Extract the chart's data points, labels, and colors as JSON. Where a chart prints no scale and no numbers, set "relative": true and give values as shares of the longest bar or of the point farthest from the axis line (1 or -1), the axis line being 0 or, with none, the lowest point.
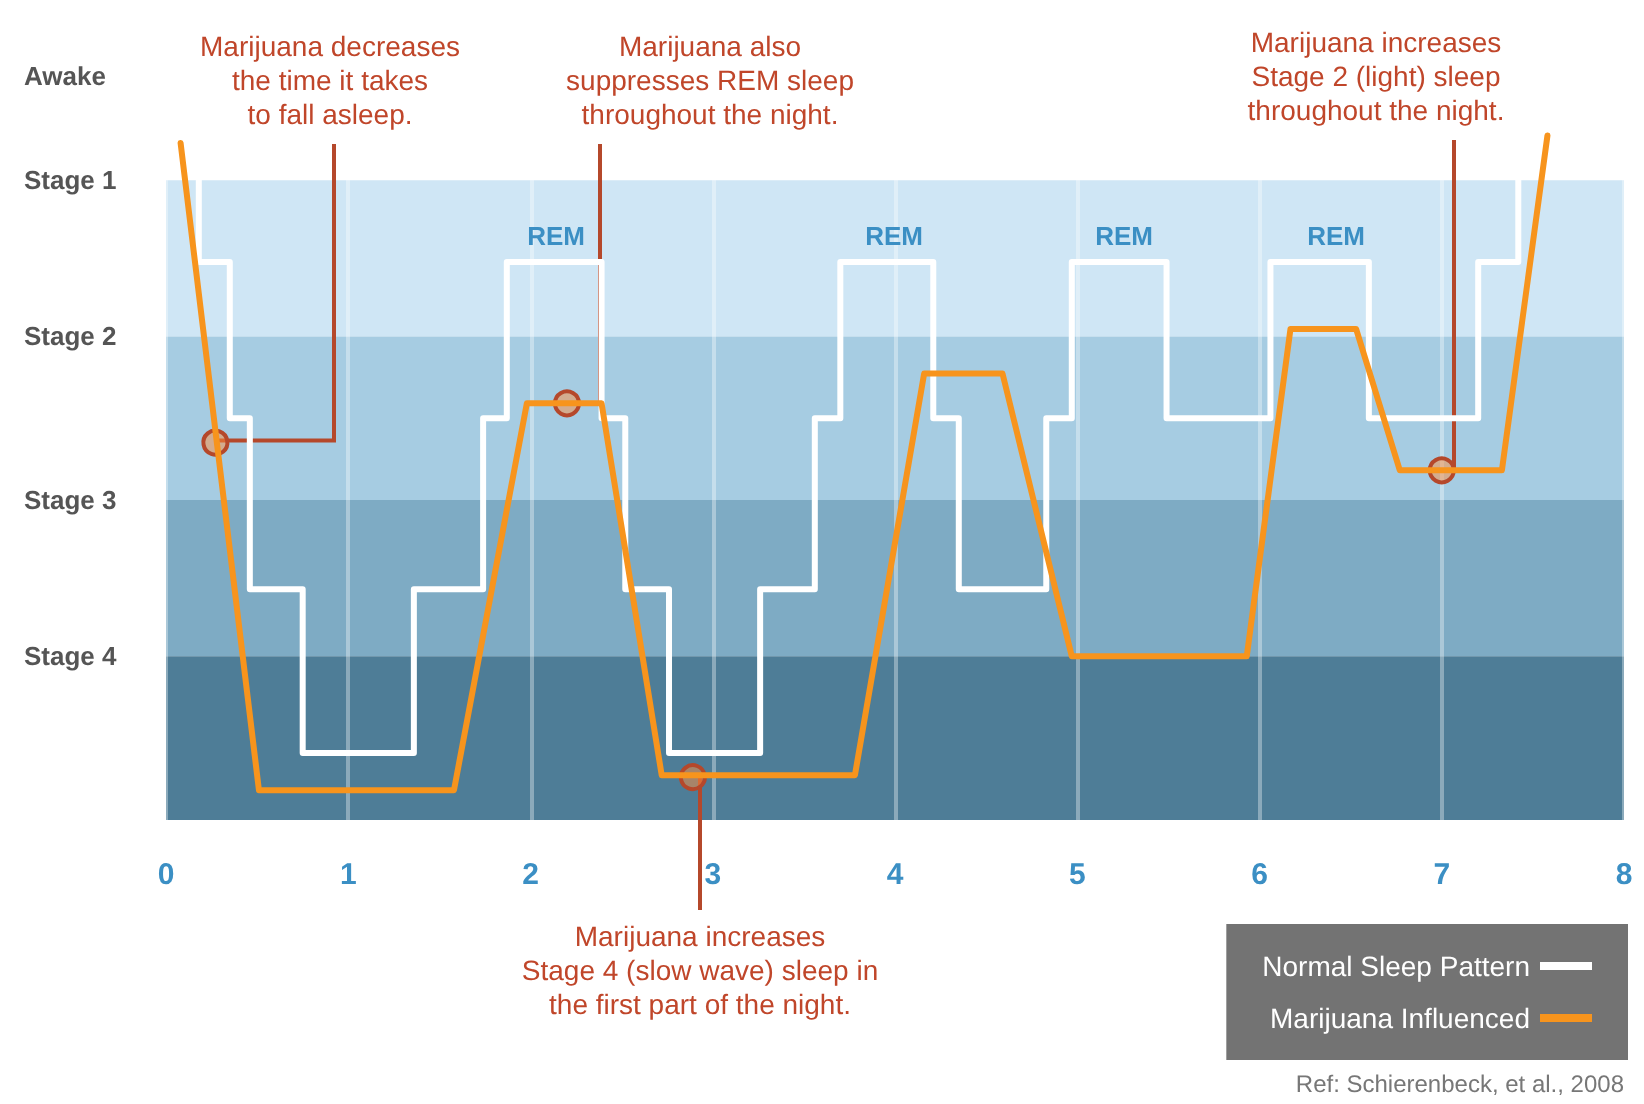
{
  "chart_data": {
    "type": "line",
    "relative": true,
    "xlim": [
      0,
      8
    ],
    "xticks": [
      0,
      1,
      2,
      3,
      4,
      5,
      6,
      7,
      8
    ],
    "series": [
      {
        "name": "Normal Sleep Pattern",
        "color": "#ffffff",
        "x": [
          0,
          0.18,
          0.18,
          0.35,
          0.35,
          0.46,
          0.46,
          0.75,
          0.75,
          1.36,
          1.36,
          1.74,
          1.74,
          1.87,
          1.87,
          2.39,
          2.39,
          2.52,
          2.52,
          2.76,
          2.76,
          3.26,
          3.26,
          3.56,
          3.56,
          3.7,
          3.7,
          4.21,
          4.21,
          4.35,
          4.35,
          4.83,
          4.83,
          4.97,
          4.97,
          5.49,
          5.49,
          6.06,
          6.06,
          6.6,
          6.6,
          7.2,
          7.2,
          7.42,
          7.42
        ],
        "values": [
          1,
          1,
          0.75,
          0.75,
          0.54,
          0.54,
          0.31,
          0.31,
          0.09,
          0.09,
          0.31,
          0.31,
          0.54,
          0.54,
          0.75,
          0.75,
          0.54,
          0.54,
          0.31,
          0.31,
          0.09,
          0.09,
          0.31,
          0.31,
          0.54,
          0.54,
          0.75,
          0.75,
          0.54,
          0.54,
          0.31,
          0.31,
          0.54,
          0.54,
          0.75,
          0.75,
          0.54,
          0.54,
          0.75,
          0.75,
          0.54,
          0.54,
          0.75,
          0.75,
          1
        ]
      },
      {
        "name": "Marijuana Influenced",
        "color": "#f7941d",
        "x": [
          0.08,
          0.51,
          1.58,
          1.98,
          2.39,
          2.72,
          3.78,
          4.16,
          4.59,
          4.97,
          5.93,
          6.17,
          6.53,
          6.77,
          7.33,
          7.58
        ],
        "values": [
          0.91,
          0.04,
          0.04,
          0.56,
          0.56,
          0.06,
          0.06,
          0.6,
          0.6,
          0.22,
          0.22,
          0.66,
          0.66,
          0.47,
          0.47,
          0.92
        ]
      }
    ],
    "bands": [
      {
        "axis": "y",
        "from": 0.65,
        "to": 0.86,
        "color": "#cfe6f5",
        "label": "Stage 1"
      },
      {
        "axis": "y",
        "from": 0.43,
        "to": 0.65,
        "color": "#a6cce2",
        "label": "Stage 2"
      },
      {
        "axis": "y",
        "from": 0.22,
        "to": 0.43,
        "color": "#7eabc4",
        "label": "Stage 3"
      },
      {
        "axis": "y",
        "from": 0,
        "to": 0.22,
        "color": "#4e7d97",
        "label": "Stage 4"
      }
    ],
    "annotations": [
      {
        "text": "Marijuana decreases\nthe time it takes\nto fall asleep.",
        "x": 0.27,
        "y": 0.51
      },
      {
        "text": "Marijuana also\nsuppresses REM sleep\nthroughout the night.",
        "x": 2.2,
        "y": 0.56
      },
      {
        "text": "Marijuana increases\nStage 4 (slow wave) sleep in\nthe first part of the night.",
        "x": 2.89,
        "y": 0.06
      },
      {
        "text": "Marijuana increases\nStage 2 (light) sleep\nthroughout the night.",
        "x": 7.0,
        "y": 0.47
      },
      {
        "text": "Awake",
        "x": 0,
        "y": 1
      },
      "REM",
      "REM",
      "REM",
      "REM",
      "Ref: Schierenbeck, et al., 2008"
    ],
    "grid": "x",
    "legend": "bottom right",
    "marker": "none",
    "line_style": "solid"
  }
}
